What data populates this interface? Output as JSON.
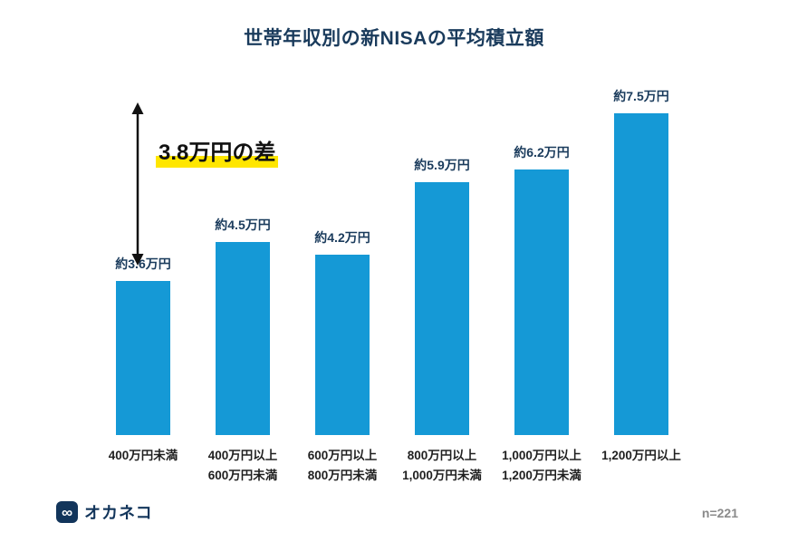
{
  "title": "世帯年収別の新NISAの平均積立額",
  "annotation": {
    "gap_label": "3.8万円の差"
  },
  "footer": {
    "logo_text": "オカネコ",
    "logo_icon_glyph": "∞",
    "sample_size": "n=221"
  },
  "colors": {
    "bar": "#1599d6",
    "navy": "#1a3b5c",
    "highlight": "#ffe600"
  },
  "chart_data": {
    "type": "bar",
    "title": "世帯年収別の新NISAの平均積立額",
    "categories": [
      "400万円未満",
      "400万円以上\n600万円未満",
      "600万円以上\n800万円未満",
      "800万円以上\n1,000万円未満",
      "1,000万円以上\n1,200万円未満",
      "1,200万円以上"
    ],
    "values": [
      3.6,
      4.5,
      4.2,
      5.9,
      6.2,
      7.5
    ],
    "value_labels": [
      "約3.6万円",
      "約4.5万円",
      "約4.2万円",
      "約5.9万円",
      "約6.2万円",
      "約7.5万円"
    ],
    "unit": "万円",
    "xlabel": "",
    "ylabel": "",
    "ylim": [
      0,
      8
    ],
    "grid": false,
    "legend": false,
    "annotation": "3.8万円の差",
    "sample_size": "n=221"
  }
}
